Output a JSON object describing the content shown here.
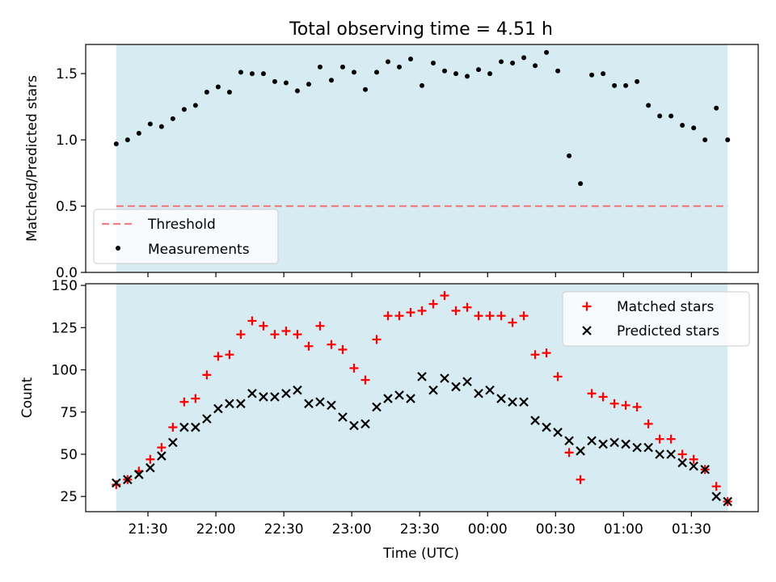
{
  "title": "Total observing time = 4.51 h",
  "xlabel": "Time (UTC)",
  "x_ticks": [
    "21:30",
    "22:00",
    "22:30",
    "23:00",
    "23:30",
    "00:00",
    "00:30",
    "01:00",
    "01:30"
  ],
  "colors": {
    "shade": "#add8e6",
    "threshold": "#f08080",
    "measurement": "#000000",
    "matched": "#ff0000",
    "predicted": "#000000"
  },
  "chart_data": [
    {
      "type": "scatter",
      "ylabel": "Matched/Predicted stars",
      "ylim": [
        0,
        1.72
      ],
      "y_ticks": [
        "0.0",
        "0.5",
        "1.0",
        "1.5"
      ],
      "legend": [
        "Threshold",
        "Measurements"
      ],
      "legend_position": "lower-left",
      "threshold": 0.5,
      "shaded_x_range": [
        "21:16",
        "01:46"
      ],
      "series": [
        {
          "name": "Measurements",
          "x": [
            "21:16",
            "21:21",
            "21:26",
            "21:31",
            "21:36",
            "21:41",
            "21:46",
            "21:51",
            "21:56",
            "22:01",
            "22:06",
            "22:11",
            "22:16",
            "22:21",
            "22:26",
            "22:31",
            "22:36",
            "22:41",
            "22:46",
            "22:51",
            "22:56",
            "23:01",
            "23:06",
            "23:11",
            "23:16",
            "23:21",
            "23:26",
            "23:31",
            "23:36",
            "23:41",
            "23:46",
            "23:51",
            "23:56",
            "00:01",
            "00:06",
            "00:11",
            "00:16",
            "00:21",
            "00:26",
            "00:31",
            "00:36",
            "00:41",
            "00:46",
            "00:51",
            "00:56",
            "01:01",
            "01:06",
            "01:11",
            "01:16",
            "01:21",
            "01:26",
            "01:31",
            "01:36",
            "01:41",
            "01:46"
          ],
          "y": [
            0.97,
            1.0,
            1.05,
            1.12,
            1.1,
            1.16,
            1.23,
            1.26,
            1.36,
            1.4,
            1.36,
            1.51,
            1.5,
            1.5,
            1.44,
            1.43,
            1.37,
            1.42,
            1.55,
            1.45,
            1.55,
            1.51,
            1.38,
            1.51,
            1.59,
            1.55,
            1.61,
            1.41,
            1.58,
            1.52,
            1.5,
            1.48,
            1.53,
            1.5,
            1.59,
            1.58,
            1.62,
            1.56,
            1.66,
            1.52,
            0.88,
            0.67,
            1.49,
            1.5,
            1.41,
            1.41,
            1.44,
            1.26,
            1.18,
            1.18,
            1.11,
            1.09,
            1.0,
            1.24,
            1.0
          ]
        }
      ]
    },
    {
      "type": "scatter",
      "ylabel": "Count",
      "ylim": [
        16,
        151
      ],
      "y_ticks": [
        "25",
        "50",
        "75",
        "100",
        "125",
        "150"
      ],
      "legend": [
        "Matched stars",
        "Predicted stars"
      ],
      "legend_position": "upper-right",
      "shaded_x_range": [
        "21:16",
        "01:46"
      ],
      "series": [
        {
          "name": "Matched stars",
          "x": [
            "21:16",
            "21:21",
            "21:26",
            "21:31",
            "21:36",
            "21:41",
            "21:46",
            "21:51",
            "21:56",
            "22:01",
            "22:06",
            "22:11",
            "22:16",
            "22:21",
            "22:26",
            "22:31",
            "22:36",
            "22:41",
            "22:46",
            "22:51",
            "22:56",
            "23:01",
            "23:06",
            "23:11",
            "23:16",
            "23:21",
            "23:26",
            "23:31",
            "23:36",
            "23:41",
            "23:46",
            "23:51",
            "23:56",
            "00:01",
            "00:06",
            "00:11",
            "00:16",
            "00:21",
            "00:26",
            "00:31",
            "00:36",
            "00:41",
            "00:46",
            "00:51",
            "00:56",
            "01:01",
            "01:06",
            "01:11",
            "01:16",
            "01:21",
            "01:26",
            "01:31",
            "01:36",
            "01:41",
            "01:46"
          ],
          "y": [
            32,
            35,
            40,
            47,
            54,
            66,
            81,
            83,
            97,
            108,
            109,
            121,
            129,
            126,
            121,
            123,
            121,
            114,
            126,
            115,
            112,
            101,
            94,
            118,
            132,
            132,
            134,
            135,
            139,
            144,
            135,
            137,
            132,
            132,
            132,
            128,
            132,
            109,
            110,
            96,
            51,
            35,
            86,
            84,
            80,
            79,
            78,
            68,
            59,
            59,
            50,
            47,
            41,
            31,
            22
          ]
        },
        {
          "name": "Predicted stars",
          "x": [
            "21:16",
            "21:21",
            "21:26",
            "21:31",
            "21:36",
            "21:41",
            "21:46",
            "21:51",
            "21:56",
            "22:01",
            "22:06",
            "22:11",
            "22:16",
            "22:21",
            "22:26",
            "22:31",
            "22:36",
            "22:41",
            "22:46",
            "22:51",
            "22:56",
            "23:01",
            "23:06",
            "23:11",
            "23:16",
            "23:21",
            "23:26",
            "23:31",
            "23:36",
            "23:41",
            "23:46",
            "23:51",
            "23:56",
            "00:01",
            "00:06",
            "00:11",
            "00:16",
            "00:21",
            "00:26",
            "00:31",
            "00:36",
            "00:41",
            "00:46",
            "00:51",
            "00:56",
            "01:01",
            "01:06",
            "01:11",
            "01:16",
            "01:21",
            "01:26",
            "01:31",
            "01:36",
            "01:41",
            "01:46"
          ],
          "y": [
            33,
            35,
            38,
            42,
            49,
            57,
            66,
            66,
            71,
            77,
            80,
            80,
            86,
            84,
            84,
            86,
            88,
            80,
            81,
            79,
            72,
            67,
            68,
            78,
            83,
            85,
            83,
            96,
            88,
            95,
            90,
            93,
            86,
            88,
            83,
            81,
            81,
            70,
            66,
            63,
            58,
            52,
            58,
            56,
            57,
            56,
            54,
            54,
            50,
            50,
            45,
            43,
            41,
            25,
            22
          ]
        }
      ]
    }
  ]
}
